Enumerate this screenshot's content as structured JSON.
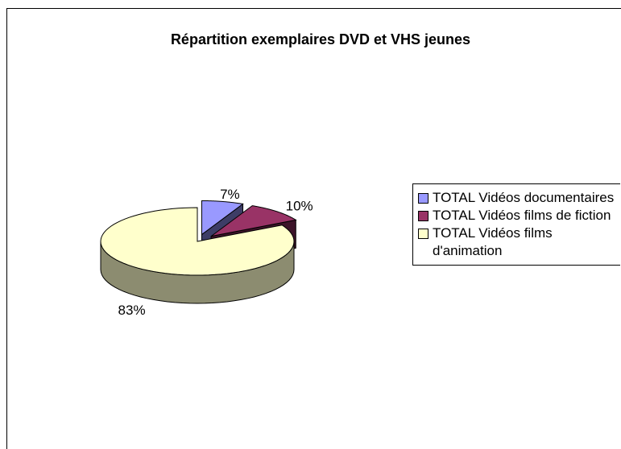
{
  "chart_data": {
    "type": "pie3d",
    "title": "Répartition exemplaires DVD et VHS jeunes",
    "categories": [
      "TOTAL Vidéos documentaires",
      "TOTAL Vidéos films de fiction",
      "TOTAL Vidéos films d'animation"
    ],
    "values": [
      7,
      10,
      83
    ],
    "value_labels": [
      "7%",
      "10%",
      "83%"
    ],
    "colors": [
      "#9999ff",
      "#993366",
      "#ffffcc"
    ],
    "legend": "right"
  }
}
